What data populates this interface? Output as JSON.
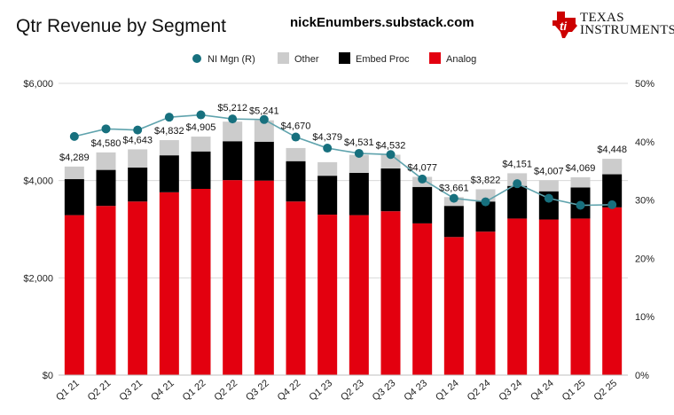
{
  "header": {
    "title": "Qtr Revenue by Segment",
    "source": "nickEnumbers.substack.com",
    "logo_text_line1": "Texas",
    "logo_text_line2": "Instruments"
  },
  "colors": {
    "analog": "#e3000f",
    "embed": "#000000",
    "other": "#cccccc",
    "margin_line": "#5fa3ad",
    "margin_marker": "#17707e",
    "logo_red": "#cc0000"
  },
  "chart_data": {
    "type": "bar",
    "stacked": true,
    "categories": [
      "Q1 21",
      "Q2 21",
      "Q3 21",
      "Q4 21",
      "Q1 22",
      "Q2 22",
      "Q3 22",
      "Q4 22",
      "Q1 23",
      "Q2 23",
      "Q3 23",
      "Q4 23",
      "Q1 24",
      "Q2 24",
      "Q3 24",
      "Q4 24",
      "Q1 25",
      "Q2 25"
    ],
    "series": [
      {
        "name": "Analog",
        "axis": "left",
        "values": [
          3290,
          3480,
          3570,
          3760,
          3830,
          4010,
          4000,
          3570,
          3300,
          3290,
          3370,
          3120,
          2840,
          2950,
          3220,
          3200,
          3220,
          3450
        ]
      },
      {
        "name": "Embed Proc",
        "axis": "left",
        "values": [
          740,
          740,
          700,
          760,
          770,
          800,
          800,
          830,
          800,
          870,
          880,
          750,
          640,
          620,
          670,
          580,
          640,
          680
        ]
      },
      {
        "name": "Other",
        "axis": "left",
        "values": [
          259,
          360,
          373,
          312,
          305,
          402,
          441,
          270,
          279,
          371,
          282,
          207,
          181,
          252,
          261,
          227,
          209,
          318
        ]
      },
      {
        "name": "NI Mgn (R)",
        "axis": "right",
        "type": "line",
        "values": [
          40.9,
          42.2,
          42.0,
          44.2,
          44.6,
          43.9,
          43.8,
          40.8,
          38.9,
          38.0,
          37.8,
          33.6,
          30.3,
          29.7,
          32.8,
          30.3,
          29.1,
          29.2
        ]
      }
    ],
    "totals": [
      4289,
      4580,
      4643,
      4832,
      4905,
      5212,
      5241,
      4670,
      4379,
      4531,
      4532,
      4077,
      3661,
      3822,
      4151,
      4007,
      4069,
      4448
    ],
    "total_labels": [
      "$4,289",
      "$4,580",
      "$4,643",
      "$4,832",
      "$4,905",
      "$5,212",
      "$5,241",
      "$4,670",
      "$4,379",
      "$4,531",
      "$4,532",
      "$4,077",
      "$3,661",
      "$3,822",
      "$4,151",
      "$4,007",
      "$4,069",
      "$4,448"
    ],
    "y_left": {
      "min": 0,
      "max": 6000,
      "ticks": [
        0,
        2000,
        4000,
        6000
      ],
      "tick_labels": [
        "$0",
        "$2,000",
        "$4,000",
        "$6,000"
      ]
    },
    "y_right": {
      "min": 0,
      "max": 50,
      "ticks": [
        0,
        10,
        20,
        30,
        40,
        50
      ],
      "tick_labels": [
        "0%",
        "10%",
        "20%",
        "30%",
        "40%",
        "50%"
      ]
    },
    "legend": [
      "NI Mgn (R)",
      "Other",
      "Embed Proc",
      "Analog"
    ],
    "legend_position": "top",
    "grid": true
  }
}
